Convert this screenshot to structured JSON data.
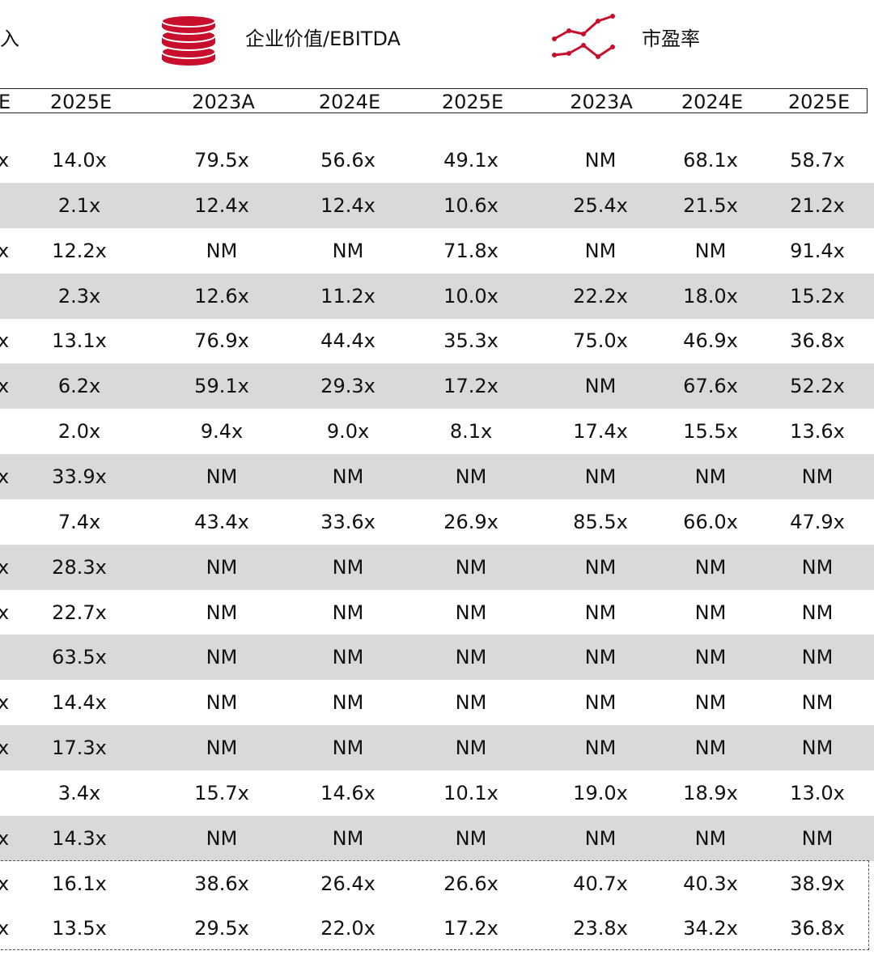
{
  "legend": {
    "item1_cut": "入",
    "item2": "企业价值/EBITDA",
    "item3": "市盈率",
    "accent_color": "#c8102e"
  },
  "header": {
    "cut": "E",
    "col1": "2025E",
    "group2": [
      "2023A",
      "2024E",
      "2025E"
    ],
    "group3": [
      "2023A",
      "2024E",
      "2025E"
    ]
  },
  "rows": [
    {
      "cut": "x",
      "values": [
        "14.0x",
        "79.5x",
        "56.6x",
        "49.1x",
        "NM",
        "68.1x",
        "58.7x"
      ]
    },
    {
      "cut": "",
      "values": [
        "2.1x",
        "12.4x",
        "12.4x",
        "10.6x",
        "25.4x",
        "21.5x",
        "21.2x"
      ]
    },
    {
      "cut": "x",
      "values": [
        "12.2x",
        "NM",
        "NM",
        "71.8x",
        "NM",
        "NM",
        "91.4x"
      ]
    },
    {
      "cut": "",
      "values": [
        "2.3x",
        "12.6x",
        "11.2x",
        "10.0x",
        "22.2x",
        "18.0x",
        "15.2x"
      ]
    },
    {
      "cut": "x",
      "values": [
        "13.1x",
        "76.9x",
        "44.4x",
        "35.3x",
        "75.0x",
        "46.9x",
        "36.8x"
      ]
    },
    {
      "cut": "x",
      "values": [
        "6.2x",
        "59.1x",
        "29.3x",
        "17.2x",
        "NM",
        "67.6x",
        "52.2x"
      ]
    },
    {
      "cut": "",
      "values": [
        "2.0x",
        "9.4x",
        "9.0x",
        "8.1x",
        "17.4x",
        "15.5x",
        "13.6x"
      ]
    },
    {
      "cut": "x",
      "values": [
        "33.9x",
        "NM",
        "NM",
        "NM",
        "NM",
        "NM",
        "NM"
      ]
    },
    {
      "cut": "",
      "values": [
        "7.4x",
        "43.4x",
        "33.6x",
        "26.9x",
        "85.5x",
        "66.0x",
        "47.9x"
      ]
    },
    {
      "cut": "x",
      "values": [
        "28.3x",
        "NM",
        "NM",
        "NM",
        "NM",
        "NM",
        "NM"
      ]
    },
    {
      "cut": "x",
      "values": [
        "22.7x",
        "NM",
        "NM",
        "NM",
        "NM",
        "NM",
        "NM"
      ]
    },
    {
      "cut": "",
      "values": [
        "63.5x",
        "NM",
        "NM",
        "NM",
        "NM",
        "NM",
        "NM"
      ]
    },
    {
      "cut": "x",
      "values": [
        "14.4x",
        "NM",
        "NM",
        "NM",
        "NM",
        "NM",
        "NM"
      ]
    },
    {
      "cut": "x",
      "values": [
        "17.3x",
        "NM",
        "NM",
        "NM",
        "NM",
        "NM",
        "NM"
      ]
    },
    {
      "cut": "",
      "values": [
        "3.4x",
        "15.7x",
        "14.6x",
        "10.1x",
        "19.0x",
        "18.9x",
        "13.0x"
      ]
    },
    {
      "cut": "x",
      "values": [
        "14.3x",
        "NM",
        "NM",
        "NM",
        "NM",
        "NM",
        "NM"
      ]
    },
    {
      "cut": "x",
      "values": [
        "16.1x",
        "38.6x",
        "26.4x",
        "26.6x",
        "40.7x",
        "40.3x",
        "38.9x"
      ]
    },
    {
      "cut": "x",
      "values": [
        "13.5x",
        "29.5x",
        "22.0x",
        "17.2x",
        "23.8x",
        "34.2x",
        "36.8x"
      ]
    }
  ]
}
